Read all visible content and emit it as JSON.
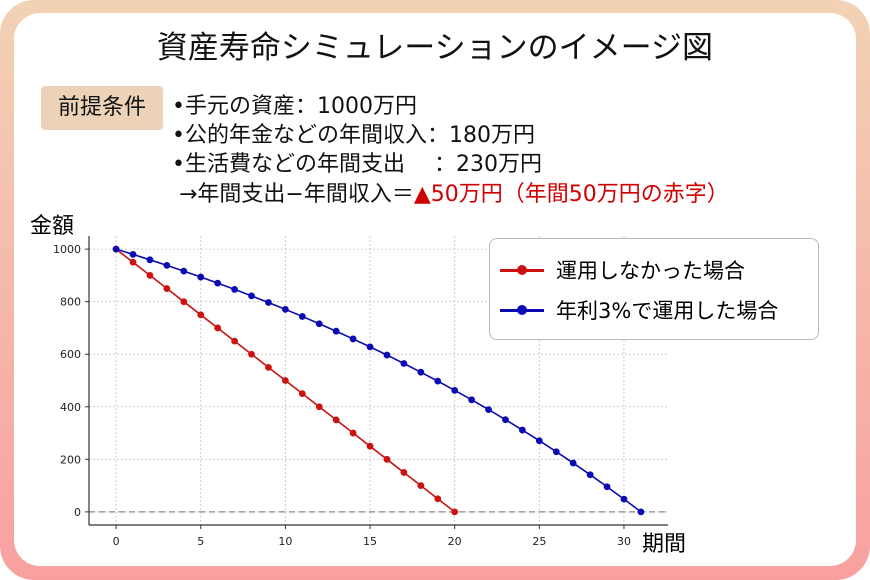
{
  "title": "資産寿命シミュレーションのイメージ図",
  "premise_badge": "前提条件",
  "conditions": [
    "•手元の資産：1000万円",
    "•公的年金などの年間収入：180万円",
    "•生活費などの年間支出　 ：230万円"
  ],
  "result_line": {
    "prefix": " →年間支出−年間収入＝",
    "highlight": "▲50万円（年間50万円の赤字）",
    "highlight_color": "#d00000"
  },
  "chart_data": {
    "type": "line",
    "xlabel": "期間",
    "ylabel": "金額",
    "xlim": [
      -1.6,
      32.6
    ],
    "ylim": [
      -50,
      1050
    ],
    "xticks": [
      0,
      5,
      10,
      15,
      20,
      25,
      30
    ],
    "yticks": [
      0,
      200,
      400,
      600,
      800,
      1000
    ],
    "grid": true,
    "reference_line": {
      "y": 0,
      "style": "dashed",
      "color": "#888888"
    },
    "legend_position": "top-right",
    "series": [
      {
        "name": "運用しなかった場合",
        "color": "#cc1111",
        "x": [
          0,
          1,
          2,
          3,
          4,
          5,
          6,
          7,
          8,
          9,
          10,
          11,
          12,
          13,
          14,
          15,
          16,
          17,
          18,
          19,
          20
        ],
        "y": [
          1000,
          950,
          900,
          850,
          800,
          750,
          700,
          650,
          600,
          550,
          500,
          450,
          400,
          350,
          300,
          250,
          200,
          150,
          100,
          50,
          0
        ]
      },
      {
        "name": "年利3%で運用した場合",
        "color": "#0a0ab4",
        "x": [
          0,
          1,
          2,
          3,
          4,
          5,
          6,
          7,
          8,
          9,
          10,
          11,
          12,
          13,
          14,
          15,
          16,
          17,
          18,
          19,
          20,
          21,
          22,
          23,
          24,
          25,
          26,
          27,
          28,
          29,
          30,
          31
        ],
        "y": [
          1000,
          980,
          959.4,
          938.2,
          916.3,
          893.8,
          870.6,
          846.7,
          822.1,
          796.8,
          770.7,
          743.8,
          716.1,
          687.6,
          658.2,
          628,
          596.8,
          564.7,
          531.7,
          497.6,
          462.5,
          426.4,
          389.2,
          350.9,
          311.4,
          270.8,
          228.9,
          185.8,
          141.4,
          95.7,
          48.6,
          0
        ]
      }
    ]
  }
}
